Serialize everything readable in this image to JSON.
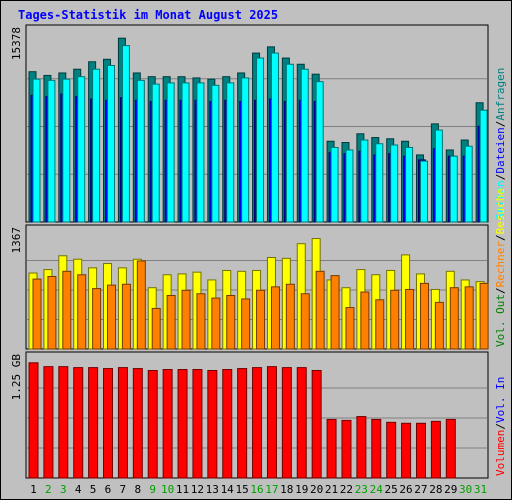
{
  "chart_data": {
    "type": "bar",
    "title": "Tages-Statistik im Monat August 2025",
    "categories": [
      "1",
      "2",
      "3",
      "4",
      "5",
      "6",
      "7",
      "8",
      "9",
      "10",
      "11",
      "12",
      "13",
      "14",
      "15",
      "16",
      "17",
      "18",
      "19",
      "20",
      "21",
      "22",
      "23",
      "24",
      "25",
      "26",
      "27",
      "28",
      "29",
      "30",
      "31"
    ],
    "weekend_days": [
      "2",
      "3",
      "9",
      "10",
      "16",
      "17",
      "23",
      "24",
      "30",
      "31"
    ],
    "panels": [
      {
        "id": "top",
        "ylim": [
          0,
          15378
        ],
        "tick_label": "15378",
        "series": [
          {
            "name": "Anfragen",
            "color": "#008080",
            "values": [
              12100,
              11800,
              12000,
              12300,
              12900,
              13100,
              14800,
              12000,
              11700,
              11700,
              11700,
              11600,
              11500,
              11700,
              12000,
              13600,
              14100,
              13200,
              12700,
              11900,
              6500,
              6400,
              7100,
              6800,
              6700,
              6500,
              5400,
              7900,
              5800,
              6600,
              9600
            ]
          },
          {
            "name": "Dateien",
            "color": "#0000ff",
            "values": [
              10200,
              10100,
              10300,
              10100,
              9900,
              9800,
              10000,
              9800,
              9700,
              9800,
              9800,
              9800,
              9700,
              9800,
              9700,
              9800,
              9900,
              9700,
              9800,
              9700,
              5600,
              5500,
              5700,
              5400,
              5500,
              5300,
              5000,
              5900,
              5300,
              5300,
              7700
            ]
          },
          {
            "name": "Seiten",
            "color": "#00ffff",
            "values": [
              11500,
              11400,
              11500,
              11700,
              12300,
              12600,
              14200,
              11400,
              11100,
              11200,
              11200,
              11200,
              11000,
              11200,
              11600,
              13200,
              13600,
              12700,
              12300,
              11300,
              6000,
              5800,
              6600,
              6300,
              6200,
              6000,
              4900,
              7400,
              5300,
              6100,
              9000
            ]
          }
        ]
      },
      {
        "id": "middle",
        "ylim": [
          0,
          1367
        ],
        "tick_label": "1367",
        "series": [
          {
            "name": "Besuche",
            "color": "#ffff00",
            "values": [
              880,
              920,
              1080,
              1040,
              940,
              990,
              940,
              1040,
              710,
              860,
              870,
              890,
              800,
              910,
              900,
              910,
              1060,
              1050,
              1220,
              1280,
              800,
              710,
              920,
              860,
              910,
              1090,
              870,
              690,
              900,
              800,
              780
            ]
          },
          {
            "name": "Rechner",
            "color": "#ff8000",
            "values": [
              810,
              840,
              900,
              860,
              700,
              740,
              750,
              1020,
              470,
              620,
              680,
              640,
              590,
              620,
              580,
              680,
              720,
              750,
              640,
              900,
              850,
              480,
              660,
              570,
              680,
              690,
              760,
              540,
              710,
              720,
              760
            ]
          }
        ]
      },
      {
        "id": "bottom",
        "ylim": [
          0,
          1.25
        ],
        "tick_label": "1.25 GB",
        "series": [
          {
            "name": "Volumen",
            "color": "#ff0000",
            "values": [
              1.2,
              1.16,
              1.16,
              1.15,
              1.15,
              1.14,
              1.15,
              1.14,
              1.12,
              1.13,
              1.13,
              1.13,
              1.12,
              1.13,
              1.14,
              1.15,
              1.16,
              1.15,
              1.15,
              1.12,
              0.61,
              0.6,
              0.64,
              0.61,
              0.58,
              0.57,
              0.57,
              0.59,
              0.61,
              0,
              0
            ]
          }
        ]
      }
    ],
    "right_labels": {
      "top": [
        {
          "text": "Anfragen",
          "color": "#008080"
        },
        {
          "text": "Dateien",
          "color": "#0000ff"
        },
        {
          "text": "Seiten",
          "color": "#00ffff"
        }
      ],
      "middle": [
        {
          "text": "Besuche",
          "color": "#ffff00"
        },
        {
          "text": "Rechner",
          "color": "#ff8000"
        },
        {
          "text": "Vol. Out",
          "color": "#008000"
        }
      ],
      "bottom": [
        {
          "text": "Vol. In",
          "color": "#0000ff"
        },
        {
          "text": "Volumen",
          "color": "#ff0000"
        }
      ]
    },
    "grid": true
  },
  "colors": {
    "background": "#c0c0c0",
    "plot_bg": "#c0c0c0",
    "title": "#0000ff",
    "weekday_label": "#000000",
    "weekend_label": "#00a000"
  }
}
